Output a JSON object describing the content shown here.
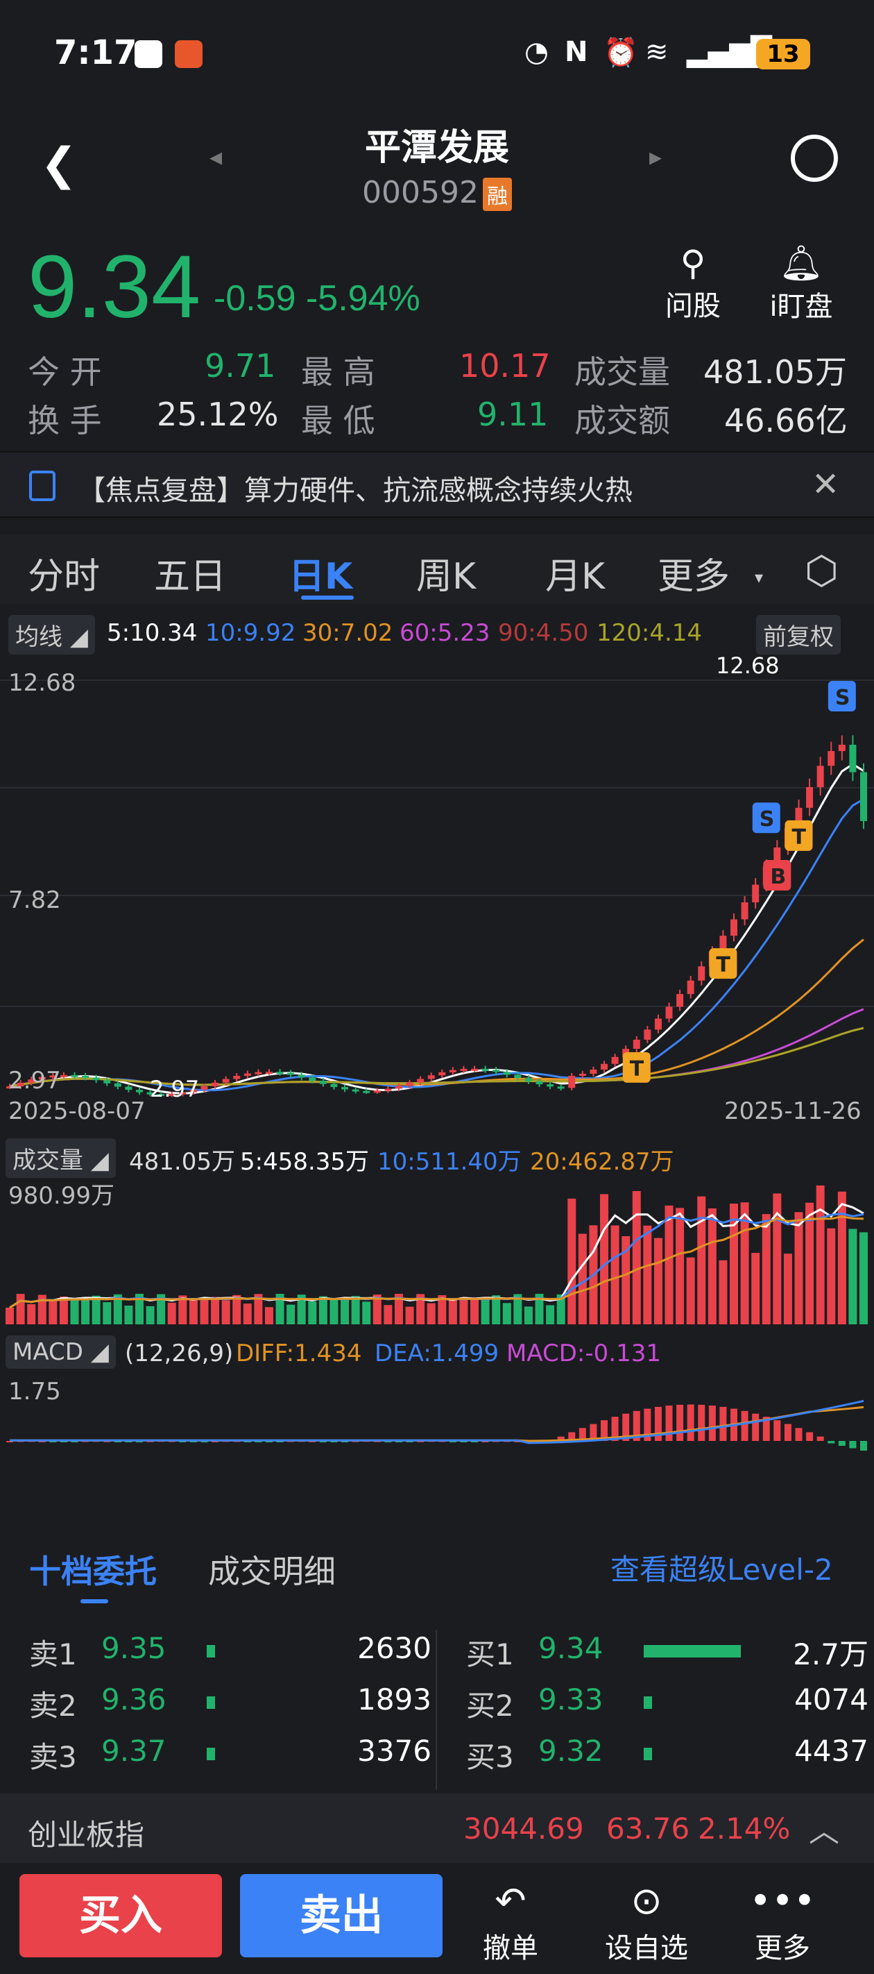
{
  "status": {
    "time": "7:17",
    "battery": "13"
  },
  "stock": {
    "name": "平潭发展",
    "code": "000592",
    "tag": "融",
    "price": "9.34",
    "change": "-0.59",
    "pct": "-5.94%"
  },
  "actions": {
    "ask": "问股",
    "watch": "i盯盘"
  },
  "quote": {
    "open_label": "今 开",
    "open": "9.71",
    "high_label": "最 高",
    "high": "10.17",
    "vol_label": "成交量",
    "vol": "481.05万",
    "turnover_label": "换 手",
    "turnover": "25.12%",
    "low_label": "最 低",
    "low": "9.11",
    "amt_label": "成交额",
    "amt": "46.66亿"
  },
  "news": {
    "text": "【焦点复盘】算力硬件、抗流感概念持续火热"
  },
  "tabs": [
    "分时",
    "五日",
    "日K",
    "周K",
    "月K",
    "更多"
  ],
  "ma": {
    "label": "均线",
    "ma5": "5:10.34",
    "ma10": "10:9.92",
    "ma30": "30:7.02",
    "ma60": "60:5.23",
    "ma90": "90:4.50",
    "ma120": "120:4.14",
    "adjust": "前复权"
  },
  "kline": {
    "ymax": "12.68",
    "ymid": "7.82",
    "ymin": "2.97",
    "low_mark": "2.97",
    "high_mark": "12.68",
    "start_date": "2025-08-07",
    "end_date": "2025-11-26"
  },
  "vol": {
    "label": "成交量",
    "cur": "481.05万",
    "v5": "5:458.35万",
    "v10": "10:511.40万",
    "v20": "20:462.87万",
    "ymax": "980.99万"
  },
  "macd": {
    "label": "MACD",
    "params": "(12,26,9)",
    "diff": "DIFF:1.434",
    "dea": "DEA:1.499",
    "macd": "MACD:-0.131",
    "ymax": "1.75"
  },
  "colors": {
    "up": "#e9424a",
    "down": "#21b36c",
    "ma5": "#ffffff",
    "ma10": "#3b82f6",
    "ma30": "#e09322",
    "ma60": "#c94bd6",
    "ma90": "#c0392b",
    "ma120": "#a8a428",
    "bg": "#1b1c20"
  },
  "orderbook": {
    "tab1": "十档委托",
    "tab2": "成交明细",
    "level2": "查看超级Level-2",
    "sell": [
      {
        "label": "卖1",
        "price": "9.35",
        "qty": "2630",
        "bar": 0.02
      },
      {
        "label": "卖2",
        "price": "9.36",
        "qty": "1893",
        "bar": 0.01
      },
      {
        "label": "卖3",
        "price": "9.37",
        "qty": "3376",
        "bar": 0.02
      }
    ],
    "buy": [
      {
        "label": "买1",
        "price": "9.34",
        "qty": "2.7万",
        "bar": 1.0
      },
      {
        "label": "买2",
        "price": "9.33",
        "qty": "4074",
        "bar": 0.02
      },
      {
        "label": "买3",
        "price": "9.32",
        "qty": "4437",
        "bar": 0.02
      }
    ]
  },
  "index": {
    "name": "创业板指",
    "value": "3044.69",
    "chg": "63.76",
    "pct": "2.14%"
  },
  "bottom": {
    "buy": "买入",
    "sell": "卖出",
    "cancel": "撤单",
    "fav": "设自选",
    "more": "更多"
  }
}
